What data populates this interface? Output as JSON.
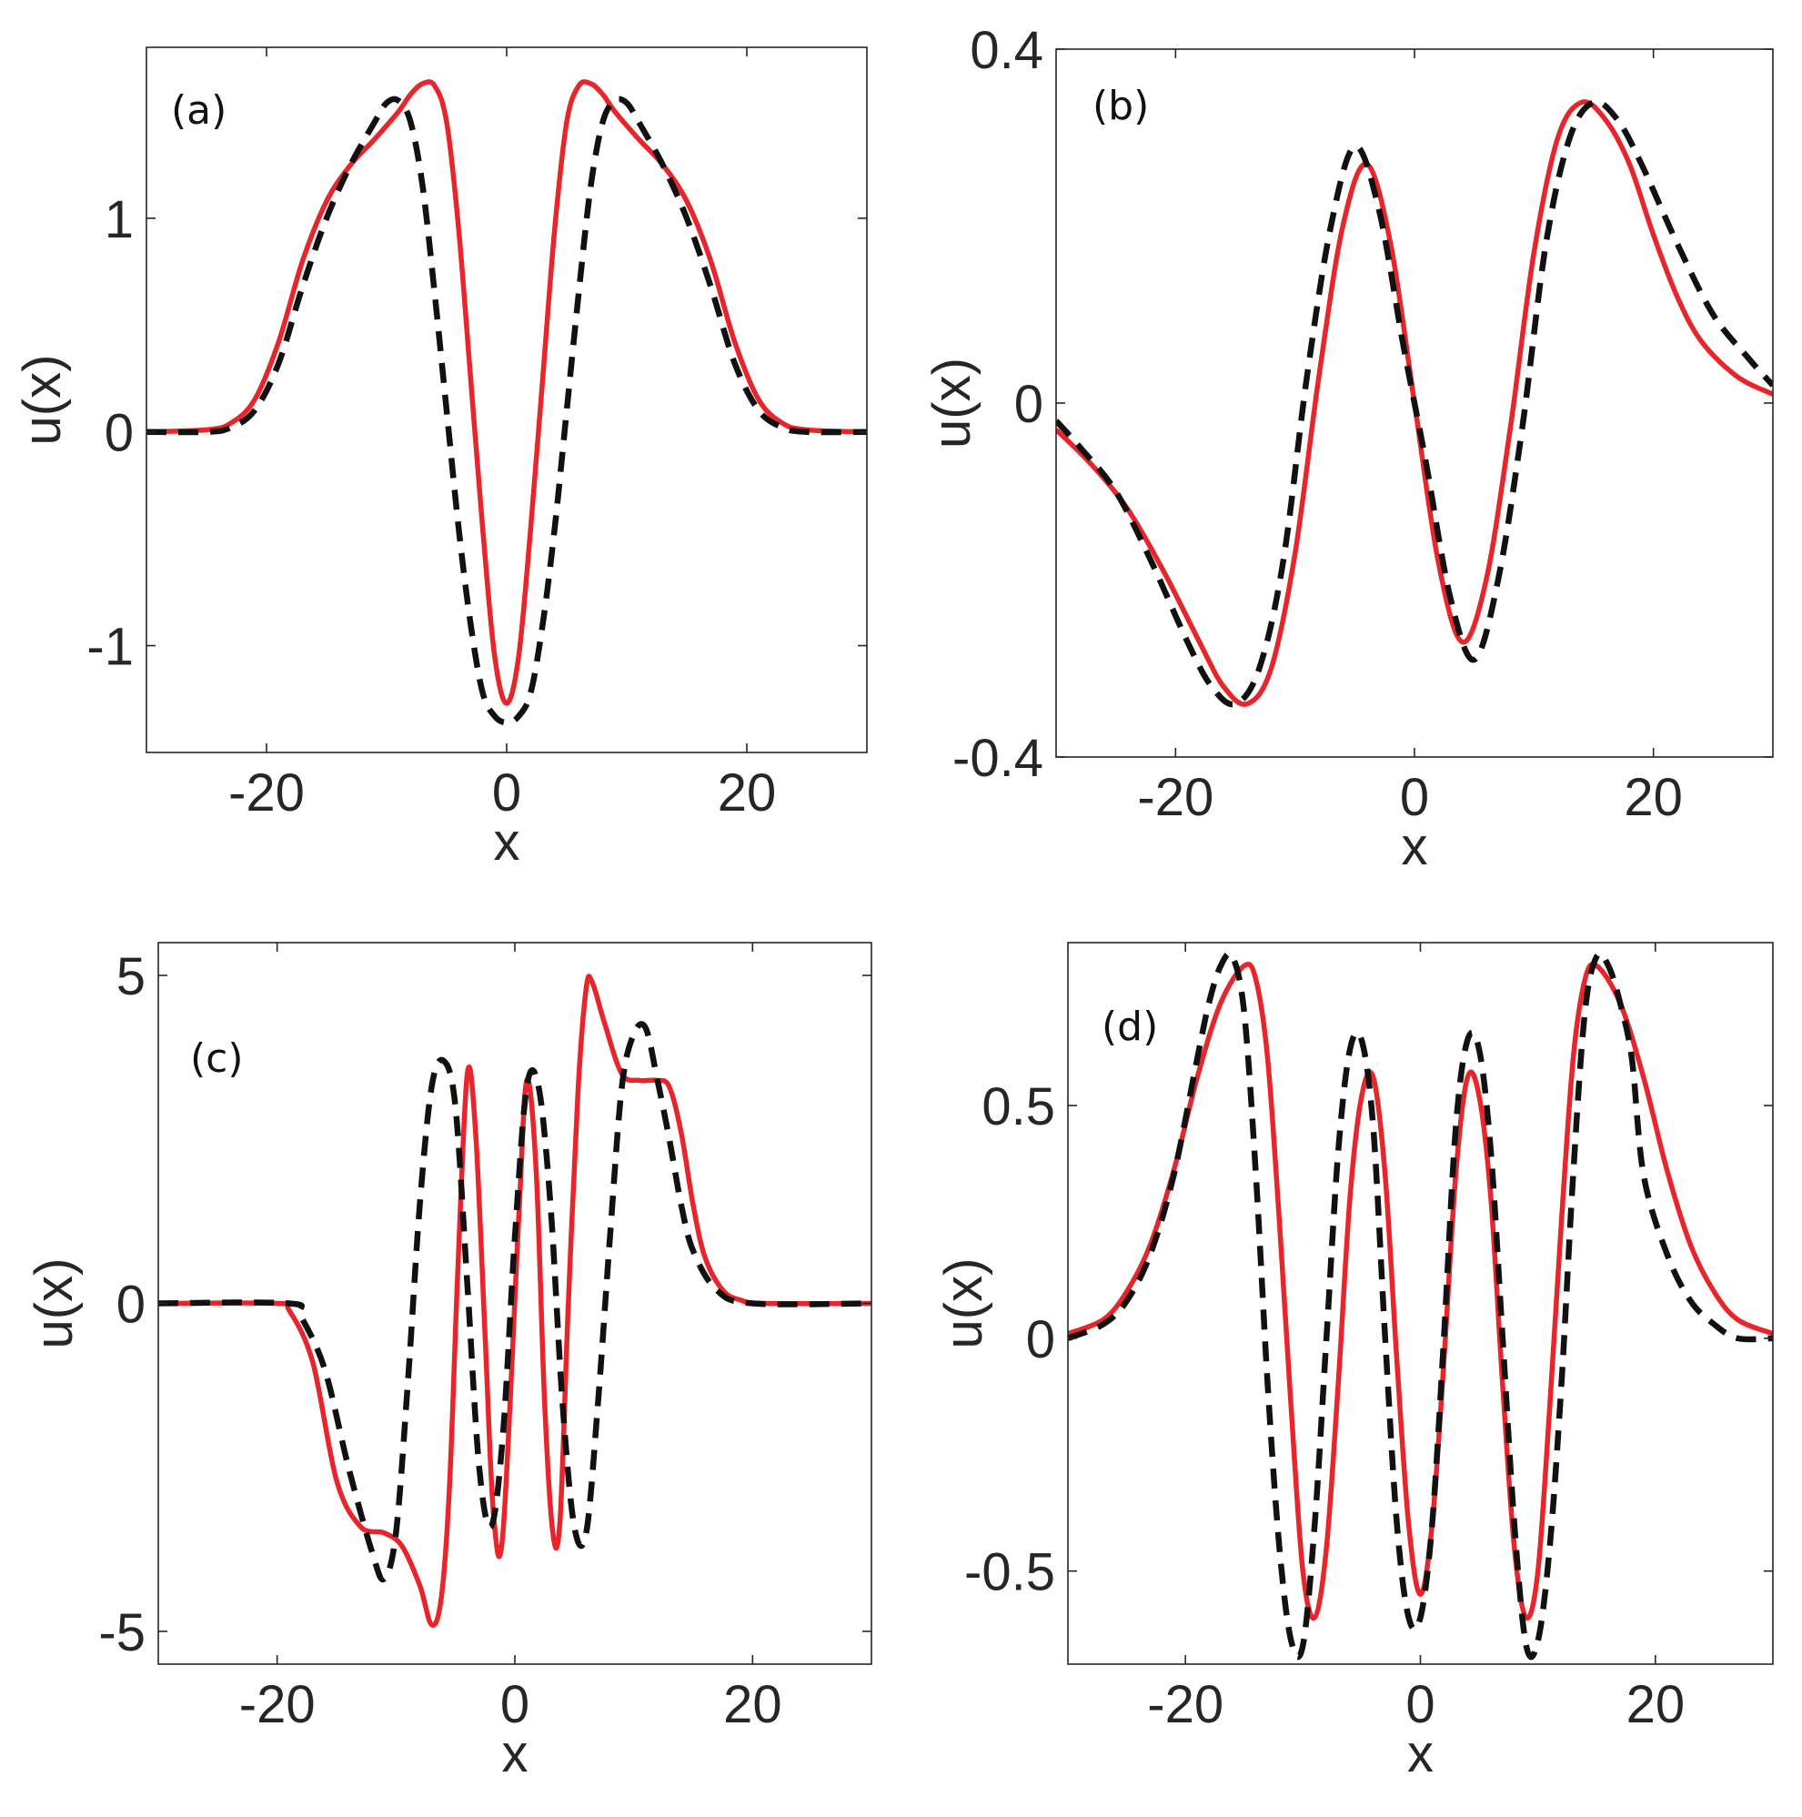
{
  "colors": {
    "solid": "#e8252b",
    "dashed": "#111111",
    "axes": "#262626"
  },
  "chart_data": [
    {
      "type": "line",
      "panel_label": "(a)",
      "xlabel": "x",
      "ylabel": "u(x)",
      "xlim": [
        -30,
        30
      ],
      "ylim": [
        -1.5,
        1.8
      ],
      "xticks": [
        -20,
        0,
        20
      ],
      "xticklabels": [
        "-20",
        "0",
        "20"
      ],
      "yticks": [
        -1,
        0,
        1
      ],
      "yticklabels": [
        "-1",
        "0",
        "1"
      ],
      "grid": false,
      "series": [
        {
          "style": "solid",
          "x": [
            -30,
            -25,
            -23,
            -21,
            -19,
            -17,
            -15,
            -13,
            -11,
            -9,
            -8,
            -7,
            -6,
            -5,
            -4,
            -3,
            -2,
            -1,
            0,
            1,
            2,
            3,
            4,
            5,
            6,
            7,
            8,
            9,
            11,
            13,
            15,
            17,
            19,
            21,
            23,
            25,
            30
          ],
          "y": [
            0,
            0.01,
            0.04,
            0.15,
            0.42,
            0.8,
            1.08,
            1.25,
            1.37,
            1.5,
            1.58,
            1.63,
            1.62,
            1.45,
            0.95,
            0.25,
            -0.45,
            -1.05,
            -1.27,
            -1.05,
            -0.45,
            0.25,
            0.95,
            1.45,
            1.62,
            1.63,
            1.58,
            1.5,
            1.37,
            1.25,
            1.08,
            0.8,
            0.42,
            0.15,
            0.04,
            0.01,
            0
          ]
        },
        {
          "style": "dashed",
          "x": [
            -30,
            -25,
            -23,
            -21,
            -19,
            -17,
            -15,
            -13,
            -11,
            -10,
            -9,
            -8,
            -7,
            -6,
            -5,
            -4,
            -3,
            -2,
            -1,
            0,
            1,
            2,
            3,
            4,
            5,
            6,
            7,
            8,
            9,
            10,
            11,
            13,
            15,
            17,
            19,
            21,
            23,
            25,
            30
          ],
          "y": [
            0,
            0.0,
            0.02,
            0.1,
            0.32,
            0.68,
            1.0,
            1.25,
            1.45,
            1.54,
            1.55,
            1.45,
            1.15,
            0.65,
            0.1,
            -0.45,
            -0.9,
            -1.22,
            -1.33,
            -1.36,
            -1.33,
            -1.22,
            -0.9,
            -0.45,
            0.1,
            0.65,
            1.15,
            1.45,
            1.55,
            1.54,
            1.45,
            1.25,
            1.0,
            0.68,
            0.32,
            0.1,
            0.02,
            0.0,
            0
          ]
        }
      ]
    },
    {
      "type": "line",
      "panel_label": "(b)",
      "xlabel": "x",
      "ylabel": "u(x)",
      "xlim": [
        -30,
        30
      ],
      "ylim": [
        -0.4,
        0.4
      ],
      "xticks": [
        -20,
        0,
        20
      ],
      "xticklabels": [
        "-20",
        "0",
        "20"
      ],
      "yticks": [
        -0.4,
        0,
        0.4
      ],
      "yticklabels": [
        "-0.4",
        "0",
        "0.4"
      ],
      "grid": false,
      "series": [
        {
          "style": "solid",
          "x": [
            -30,
            -27,
            -24,
            -21,
            -18,
            -16,
            -14,
            -12,
            -10,
            -8,
            -6,
            -4,
            -2,
            0,
            2,
            4,
            6,
            8,
            10,
            12,
            14,
            16,
            18,
            20,
            22,
            24,
            27,
            30
          ],
          "y": [
            -0.03,
            -0.07,
            -0.12,
            -0.19,
            -0.27,
            -0.32,
            -0.34,
            -0.3,
            -0.17,
            0.03,
            0.2,
            0.27,
            0.18,
            0.0,
            -0.18,
            -0.27,
            -0.2,
            -0.03,
            0.17,
            0.3,
            0.34,
            0.32,
            0.27,
            0.19,
            0.12,
            0.07,
            0.03,
            0.01
          ]
        },
        {
          "style": "dashed",
          "x": [
            -30,
            -28,
            -25,
            -22,
            -19,
            -17,
            -15,
            -13,
            -11,
            -9,
            -7,
            -5,
            -3,
            -1,
            0,
            1,
            3,
            5,
            7,
            9,
            11,
            13,
            15,
            17,
            19,
            22,
            25,
            28,
            30
          ],
          "y": [
            -0.02,
            -0.05,
            -0.1,
            -0.18,
            -0.27,
            -0.32,
            -0.34,
            -0.3,
            -0.18,
            0.03,
            0.2,
            0.29,
            0.22,
            0.07,
            0.0,
            -0.07,
            -0.22,
            -0.29,
            -0.2,
            -0.03,
            0.18,
            0.3,
            0.34,
            0.32,
            0.27,
            0.18,
            0.1,
            0.05,
            0.02
          ]
        }
      ]
    },
    {
      "type": "line",
      "panel_label": "(c)",
      "xlabel": "x",
      "ylabel": "u(x)",
      "xlim": [
        -30,
        30
      ],
      "ylim": [
        -5.5,
        5.5
      ],
      "xticks": [
        -20,
        0,
        20
      ],
      "xticklabels": [
        "-20",
        "0",
        "20"
      ],
      "yticks": [
        -5,
        0,
        5
      ],
      "yticklabels": [
        "-5",
        "0",
        "5"
      ],
      "grid": false,
      "series": [
        {
          "style": "solid",
          "x": [
            -30,
            -20,
            -19,
            -17,
            -15,
            -13,
            -11,
            -9.5,
            -8,
            -7,
            -6.2,
            -5.5,
            -4.8,
            -4,
            -3.3,
            -2.5,
            -1.8,
            -1,
            0.3,
            1,
            1.8,
            2.5,
            3.2,
            3.8,
            4.5,
            5.3,
            6,
            6.5,
            7.5,
            9,
            10.5,
            12,
            13,
            14,
            15,
            16,
            17.5,
            19,
            21,
            30
          ],
          "y": [
            0,
            0,
            -0.1,
            -0.9,
            -2.7,
            -3.4,
            -3.5,
            -3.7,
            -4.3,
            -4.9,
            -4.5,
            -2.8,
            0.5,
            3.5,
            2.6,
            -0.5,
            -3.2,
            -3.5,
            1.2,
            3.4,
            2.0,
            -1.5,
            -3.5,
            -3.3,
            0.0,
            3.2,
            4.8,
            4.9,
            4.3,
            3.5,
            3.4,
            3.4,
            3.3,
            2.6,
            1.5,
            0.7,
            0.2,
            0.05,
            0,
            0
          ]
        },
        {
          "style": "dashed",
          "x": [
            -30,
            -19,
            -18,
            -16,
            -14,
            -12,
            -11,
            -10,
            -9,
            -8,
            -7,
            -6,
            -5,
            -4,
            -3,
            -2,
            -1,
            0,
            1,
            2,
            3,
            4,
            5,
            6,
            7,
            8,
            9,
            10,
            11,
            12,
            13,
            14,
            15,
            17,
            20,
            30
          ],
          "y": [
            0,
            0,
            -0.2,
            -1.0,
            -2.5,
            -3.8,
            -4.2,
            -3.5,
            -1.2,
            1.5,
            3.3,
            3.7,
            3.0,
            0.3,
            -2.5,
            -3.4,
            -2.0,
            1.0,
            3.3,
            3.3,
            1.5,
            -1.5,
            -3.4,
            -3.5,
            -1.5,
            1.0,
            3.3,
            4.1,
            4.2,
            3.4,
            2.5,
            1.5,
            0.8,
            0.2,
            0,
            0
          ]
        }
      ]
    },
    {
      "type": "line",
      "panel_label": "(d)",
      "xlabel": "x",
      "ylabel": "u(x)",
      "xlim": [
        -30,
        30
      ],
      "ylim": [
        -0.7,
        0.85
      ],
      "xticks": [
        -20,
        0,
        20
      ],
      "xticklabels": [
        "-20",
        "0",
        "20"
      ],
      "yticks": [
        -0.5,
        0,
        0.5
      ],
      "yticklabels": [
        "-0.5",
        "0",
        "0.5"
      ],
      "grid": false,
      "series": [
        {
          "style": "solid",
          "x": [
            -30,
            -27,
            -25,
            -23,
            -21,
            -19,
            -17,
            -15,
            -14,
            -13,
            -12,
            -11,
            -10,
            -9,
            -8,
            -7,
            -6,
            -5,
            -4,
            -3,
            -2,
            -1,
            0,
            1,
            2,
            3,
            4,
            5,
            6,
            7,
            8,
            9,
            10,
            11,
            12,
            13,
            14,
            15,
            17,
            19,
            21,
            23,
            25,
            27,
            30
          ],
          "y": [
            0.01,
            0.04,
            0.1,
            0.2,
            0.36,
            0.56,
            0.72,
            0.8,
            0.77,
            0.6,
            0.25,
            -0.15,
            -0.5,
            -0.6,
            -0.45,
            -0.1,
            0.3,
            0.52,
            0.56,
            0.35,
            -0.05,
            -0.4,
            -0.55,
            -0.4,
            -0.05,
            0.35,
            0.56,
            0.52,
            0.3,
            -0.1,
            -0.45,
            -0.6,
            -0.5,
            -0.15,
            0.25,
            0.6,
            0.77,
            0.8,
            0.72,
            0.56,
            0.36,
            0.2,
            0.1,
            0.04,
            0.01
          ]
        },
        {
          "style": "dashed",
          "x": [
            -30,
            -27,
            -25,
            -23,
            -21,
            -19,
            -18,
            -17,
            -16,
            -15,
            -14,
            -13,
            -12,
            -11,
            -10,
            -9,
            -8,
            -7,
            -6,
            -5,
            -4,
            -3,
            -2,
            -1,
            0,
            1,
            2,
            3,
            4,
            5,
            6,
            7,
            8,
            9,
            10,
            11,
            12,
            13,
            14,
            15,
            16,
            17,
            18,
            19,
            21,
            23,
            25,
            27,
            30
          ],
          "y": [
            0.0,
            0.03,
            0.08,
            0.18,
            0.35,
            0.6,
            0.72,
            0.8,
            0.82,
            0.7,
            0.35,
            -0.1,
            -0.45,
            -0.65,
            -0.66,
            -0.4,
            0.0,
            0.4,
            0.62,
            0.64,
            0.45,
            0.0,
            -0.4,
            -0.6,
            -0.6,
            -0.4,
            0.0,
            0.45,
            0.64,
            0.62,
            0.4,
            0.0,
            -0.4,
            -0.66,
            -0.65,
            -0.45,
            -0.1,
            0.35,
            0.7,
            0.82,
            0.8,
            0.72,
            0.6,
            0.35,
            0.18,
            0.08,
            0.03,
            0.0,
            0.0
          ]
        }
      ]
    }
  ]
}
